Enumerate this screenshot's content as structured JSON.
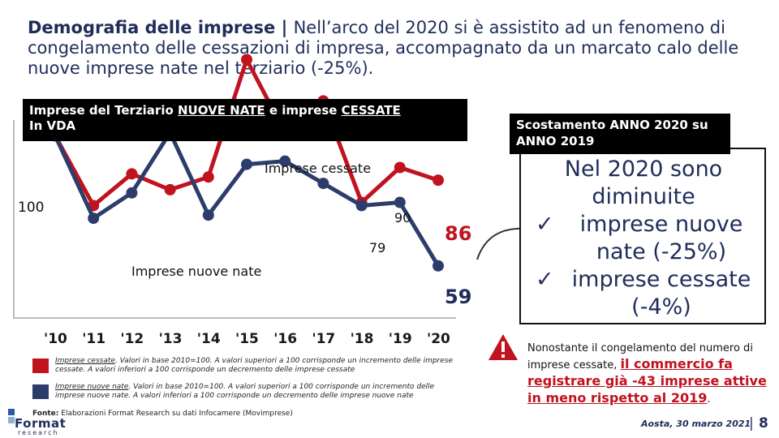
{
  "title": {
    "lead": "Demografia delle imprese | ",
    "text": "Nell’arco del 2020 si è assistito ad un fenomeno di congelamento delle cessazioni di impresa, accompagnato da un marcato calo delle nuove imprese nate nel terziario (-25%)."
  },
  "chart_header": {
    "part1": "Imprese del Terziario ",
    "nuove": "NUOVE NATE",
    "part2": " e imprese ",
    "cessate": "CESSATE",
    "part3": "In VDA"
  },
  "chart_data": {
    "type": "line",
    "title": "Imprese del Terziario NUOVE NATE e imprese CESSATE In VDA",
    "x": [
      "'10",
      "'11",
      "'12",
      "'13",
      "'14",
      "'15",
      "'16",
      "'17",
      "'18",
      "'19",
      "'20"
    ],
    "ylim": [
      50,
      130
    ],
    "reference_label": "100",
    "series": [
      {
        "name": "Imprese cessate",
        "color": "#c1121f",
        "values": [
          100,
          78,
          88,
          83,
          87,
          124,
          101,
          111,
          79,
          90,
          86
        ]
      },
      {
        "name": "Imprese nuove nate",
        "color": "#2d3d6b",
        "values": [
          100,
          74,
          82,
          101,
          75,
          91,
          92,
          85,
          78,
          79,
          59
        ]
      }
    ],
    "annotations": {
      "v90": "90",
      "v79": "79",
      "last_cessate": "86",
      "last_nuove": "59"
    }
  },
  "legend": {
    "cessate_title": "Imprese cessate",
    "cessate_text": ". Valori in base 2010=100. A valori superiori a 100 corrisponde un incremento delle imprese cessate. A valori inferiori a 100 corrisponde un decremento delle imprese cessate",
    "nuove_title": "Imprese nuove nate",
    "nuove_text": ". Valori in base 2010=100. A valori superiori a 100 corrisponde un incremento delle imprese nuove nate. A valori inferiori a 100 corrisponde un decremento delle imprese nuove nate",
    "source_label": "Fonte:",
    "source_text": " Elaborazioni Format Research su dati Infocamere (Movimprese)"
  },
  "logo": {
    "name": "Format",
    "sub": "research"
  },
  "right_panel": {
    "header": "Scostamento ANNO 2020 su ANNO 2019",
    "title": "Nel 2020 sono diminuite",
    "item1": "imprese nuove nate (-25%)",
    "item2": "imprese cessate (-4%)",
    "check": "✓"
  },
  "note": {
    "text1": "Nonostante il congelamento del numero di imprese cessate, ",
    "highlight": "il commercio fa registrare già -43 imprese attive in meno rispetto al 2019",
    "text2": "."
  },
  "footer": {
    "place_date": "Aosta, 30 marzo 2021",
    "separator": "|",
    "page": "8"
  },
  "colors": {
    "accent_red": "#c1121f",
    "navy": "#1f2d5a"
  }
}
